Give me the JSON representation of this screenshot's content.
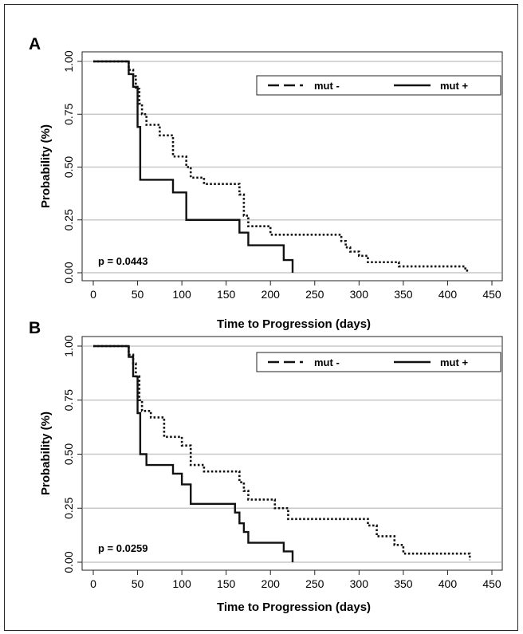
{
  "chart_data": [
    {
      "panel": "A",
      "type": "line",
      "xlabel": "Time to Progression (days)",
      "ylabel": "Probability (%)",
      "xlim": [
        0,
        450
      ],
      "ylim": [
        0,
        1
      ],
      "xticks": [
        "0",
        "50",
        "100",
        "150",
        "200",
        "250",
        "300",
        "350",
        "400",
        "450"
      ],
      "yticks": [
        "0.00",
        "0.25",
        "0.50",
        "0.75",
        "1.00"
      ],
      "grid": "horizontal",
      "legend_position": "top-right",
      "annotation": "p = 0.0443",
      "series": [
        {
          "name": "mut -",
          "style": "dotted",
          "x": [
            0,
            35,
            40,
            45,
            48,
            52,
            55,
            60,
            75,
            90,
            105,
            110,
            125,
            160,
            165,
            170,
            175,
            195,
            200,
            270,
            280,
            285,
            290,
            300,
            310,
            340,
            345,
            350,
            420,
            425
          ],
          "y": [
            1.0,
            1.0,
            0.96,
            0.93,
            0.87,
            0.8,
            0.75,
            0.7,
            0.65,
            0.55,
            0.5,
            0.45,
            0.42,
            0.42,
            0.37,
            0.27,
            0.22,
            0.22,
            0.18,
            0.18,
            0.15,
            0.12,
            0.1,
            0.08,
            0.05,
            0.05,
            0.03,
            0.03,
            0.01,
            0.01
          ]
        },
        {
          "name": "mut +",
          "style": "solid",
          "x": [
            0,
            35,
            40,
            45,
            50,
            53,
            90,
            105,
            160,
            165,
            175,
            215,
            225
          ],
          "y": [
            1.0,
            1.0,
            0.94,
            0.88,
            0.69,
            0.44,
            0.38,
            0.25,
            0.25,
            0.19,
            0.13,
            0.06,
            0.0
          ]
        }
      ]
    },
    {
      "panel": "B",
      "type": "line",
      "xlabel": "Time to Progression (days)",
      "ylabel": "Probability (%)",
      "xlim": [
        0,
        450
      ],
      "ylim": [
        0,
        1
      ],
      "xticks": [
        "0",
        "50",
        "100",
        "150",
        "200",
        "250",
        "300",
        "350",
        "400",
        "450"
      ],
      "yticks": [
        "0.00",
        "0.25",
        "0.50",
        "0.75",
        "1.00"
      ],
      "grid": "horizontal",
      "legend_position": "top-right",
      "annotation": "p = 0.0259",
      "series": [
        {
          "name": "mut -",
          "style": "dotted",
          "x": [
            0,
            35,
            40,
            45,
            48,
            52,
            55,
            65,
            80,
            100,
            110,
            125,
            160,
            165,
            170,
            175,
            195,
            205,
            215,
            220,
            250,
            310,
            320,
            340,
            350,
            425
          ],
          "y": [
            1.0,
            1.0,
            0.96,
            0.92,
            0.86,
            0.75,
            0.7,
            0.67,
            0.58,
            0.54,
            0.45,
            0.42,
            0.42,
            0.37,
            0.33,
            0.29,
            0.29,
            0.25,
            0.25,
            0.2,
            0.2,
            0.17,
            0.12,
            0.08,
            0.04,
            0.01
          ]
        },
        {
          "name": "mut +",
          "style": "solid",
          "x": [
            0,
            35,
            40,
            45,
            50,
            53,
            60,
            90,
            100,
            110,
            160,
            165,
            170,
            175,
            215,
            225
          ],
          "y": [
            1.0,
            1.0,
            0.95,
            0.86,
            0.69,
            0.5,
            0.45,
            0.41,
            0.36,
            0.27,
            0.23,
            0.18,
            0.14,
            0.09,
            0.05,
            0.0
          ]
        }
      ]
    }
  ]
}
